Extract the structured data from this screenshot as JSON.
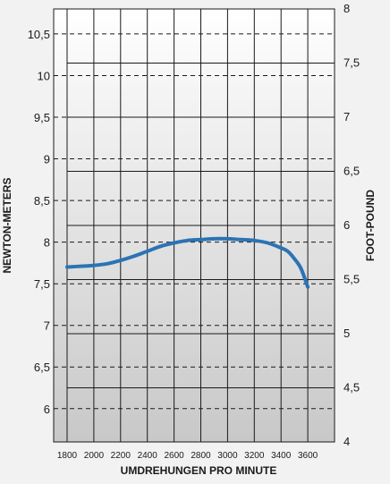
{
  "chart_data": {
    "type": "line",
    "title": "",
    "xlabel": "UMDREHUNGEN PRO MINUTE",
    "ylabel": "NEWTON-METERS",
    "y2label": "FOOT-POUND",
    "xlim": [
      1700,
      3800
    ],
    "ylim": [
      5.6,
      10.8
    ],
    "y2lim": [
      4,
      8
    ],
    "x_ticks": [
      1800,
      2000,
      2200,
      2400,
      2600,
      2800,
      3000,
      3200,
      3400,
      3600
    ],
    "y_ticks": [
      6,
      6.5,
      7,
      7.5,
      8,
      8.5,
      9,
      9.5,
      10,
      10.5
    ],
    "y2_ticks": [
      4,
      4.5,
      5,
      5.5,
      6,
      6.5,
      7,
      7.5,
      8
    ],
    "grid": true,
    "legend": "none",
    "series": [
      {
        "color": "#2b73b4",
        "x": [
          1800,
          1900,
          2000,
          2100,
          2200,
          2300,
          2400,
          2500,
          2600,
          2700,
          2800,
          2900,
          3000,
          3100,
          3200,
          3300,
          3400,
          3450,
          3500,
          3550,
          3600
        ],
        "y": [
          7.7,
          7.71,
          7.72,
          7.74,
          7.78,
          7.83,
          7.89,
          7.95,
          7.99,
          8.02,
          8.03,
          8.04,
          8.04,
          8.03,
          8.02,
          7.99,
          7.93,
          7.89,
          7.8,
          7.68,
          7.46
        ]
      }
    ]
  },
  "colors": {
    "background": "#f2f2f2",
    "plot_top": "#ffffff",
    "plot_bottom": "#c9c9c9",
    "line": "#2b73b4",
    "grid": "#1a1a1a"
  }
}
